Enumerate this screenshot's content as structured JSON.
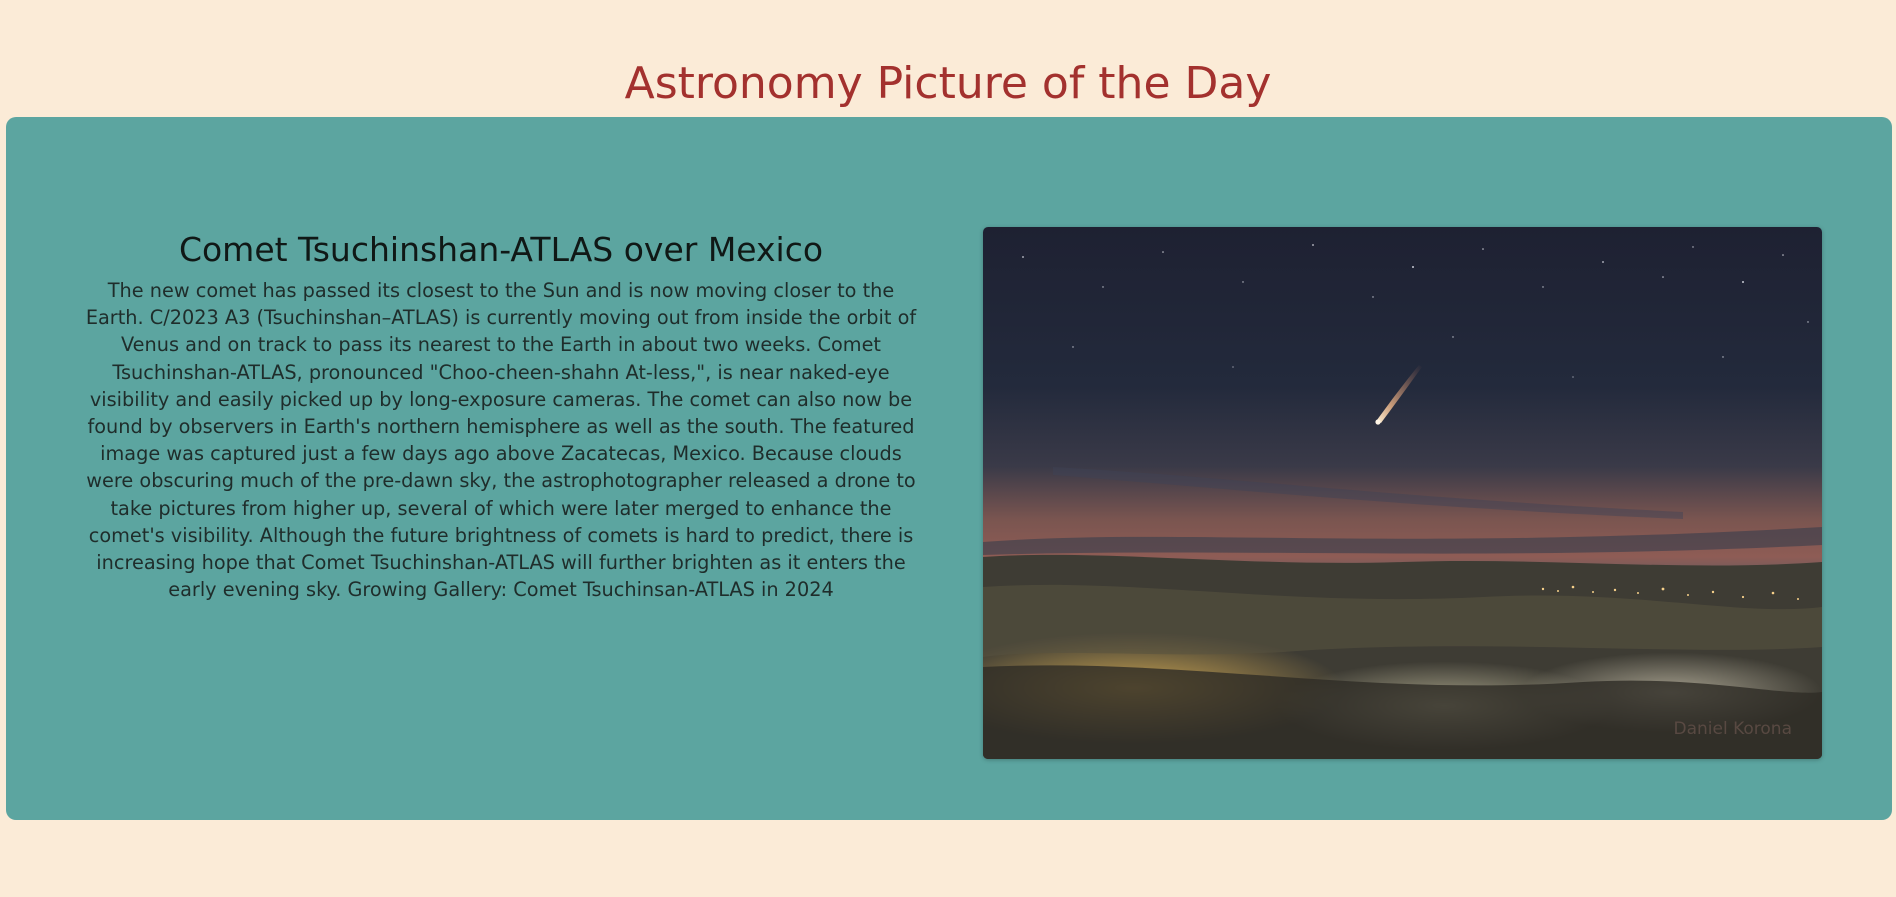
{
  "header": {
    "title": "Astronomy Picture of the Day"
  },
  "article": {
    "title": "Comet Tsuchinshan-ATLAS over Mexico",
    "body": "The new comet has passed its closest to the Sun and is now moving closer to the Earth. C/2023 A3 (Tsuchinshan–ATLAS) is currently moving out from inside the orbit of Venus and on track to pass its nearest to the Earth in about two weeks. Comet Tsuchinshan-ATLAS, pronounced \"Choo-cheen-shahn At-less,\", is near naked-eye visibility and easily picked up by long-exposure cameras. The comet can also now be found by observers in Earth's northern hemisphere as well as the south. The featured image was captured just a few days ago above Zacatecas, Mexico. Because clouds were obscuring much of the pre-dawn sky, the astrophotographer released a drone to take pictures from higher up, several of which were later merged to enhance the comet's visibility. Although the future brightness of comets is hard to predict, there is increasing hope that Comet Tsuchinshan-ATLAS will further brighten as it enters the early evening sky. Growing Gallery: Comet Tsuchinsan-ATLAS in 2024"
  },
  "photo": {
    "credit": "Daniel Korona",
    "colors": {
      "page_bg": "#fbebd7",
      "title": "#a3312e",
      "card_bg": "#5ca5a0",
      "sky_top": "#1f2233",
      "horizon_glow": "#8a5a55",
      "clouds": "#4a4638"
    }
  }
}
